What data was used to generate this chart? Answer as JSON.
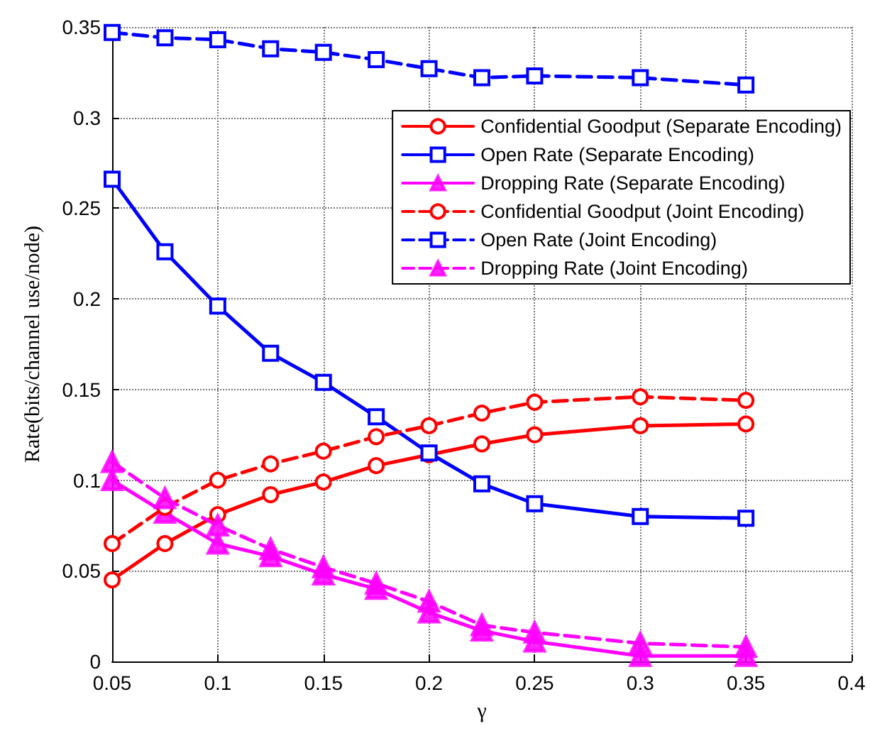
{
  "chart_data": {
    "type": "line",
    "xlabel": "γ",
    "ylabel": "Rate(bits/channel use/node)",
    "x": [
      0.05,
      0.075,
      0.1,
      0.125,
      0.15,
      0.175,
      0.2,
      0.225,
      0.25,
      0.3,
      0.35
    ],
    "xlim": [
      0.05,
      0.4
    ],
    "xticks": [
      0.05,
      0.1,
      0.15,
      0.2,
      0.25,
      0.3,
      0.35,
      0.4
    ],
    "ylim": [
      0,
      0.35
    ],
    "yticks": [
      0,
      0.05,
      0.1,
      0.15,
      0.2,
      0.25,
      0.3,
      0.35
    ],
    "grid": true,
    "legend": "top right",
    "series": [
      {
        "name": "Confidential Goodput (Separate Encoding)",
        "color": "#ff0000",
        "marker": "circle",
        "line_style": "solid",
        "values": [
          0.045,
          0.065,
          0.081,
          0.092,
          0.099,
          0.108,
          0.114,
          0.12,
          0.125,
          0.13,
          0.131
        ]
      },
      {
        "name": "Open Rate (Separate Encoding)",
        "color": "#0000ff",
        "marker": "square",
        "line_style": "solid",
        "values": [
          0.266,
          0.226,
          0.196,
          0.17,
          0.154,
          0.135,
          0.115,
          0.098,
          0.087,
          0.08,
          0.079
        ]
      },
      {
        "name": "Dropping Rate (Separate Encoding)",
        "color": "#ff00ff",
        "marker": "triangle",
        "line_style": "solid",
        "values": [
          0.1,
          0.082,
          0.065,
          0.058,
          0.048,
          0.04,
          0.027,
          0.017,
          0.011,
          0.003,
          0.003
        ]
      },
      {
        "name": "Confidential Goodput (Joint Encoding)",
        "color": "#ff0000",
        "marker": "circle",
        "line_style": "dashed",
        "values": [
          0.065,
          0.085,
          0.1,
          0.109,
          0.116,
          0.124,
          0.13,
          0.137,
          0.143,
          0.146,
          0.144
        ]
      },
      {
        "name": "Open Rate (Joint Encoding)",
        "color": "#0000ff",
        "marker": "square",
        "line_style": "dashed",
        "values": [
          0.347,
          0.344,
          0.343,
          0.338,
          0.336,
          0.332,
          0.327,
          0.322,
          0.323,
          0.322,
          0.318
        ]
      },
      {
        "name": "Dropping Rate (Joint Encoding)",
        "color": "#ff00ff",
        "marker": "triangle",
        "line_style": "dashed",
        "values": [
          0.11,
          0.09,
          0.075,
          0.062,
          0.052,
          0.043,
          0.033,
          0.02,
          0.016,
          0.01,
          0.008
        ]
      }
    ]
  }
}
